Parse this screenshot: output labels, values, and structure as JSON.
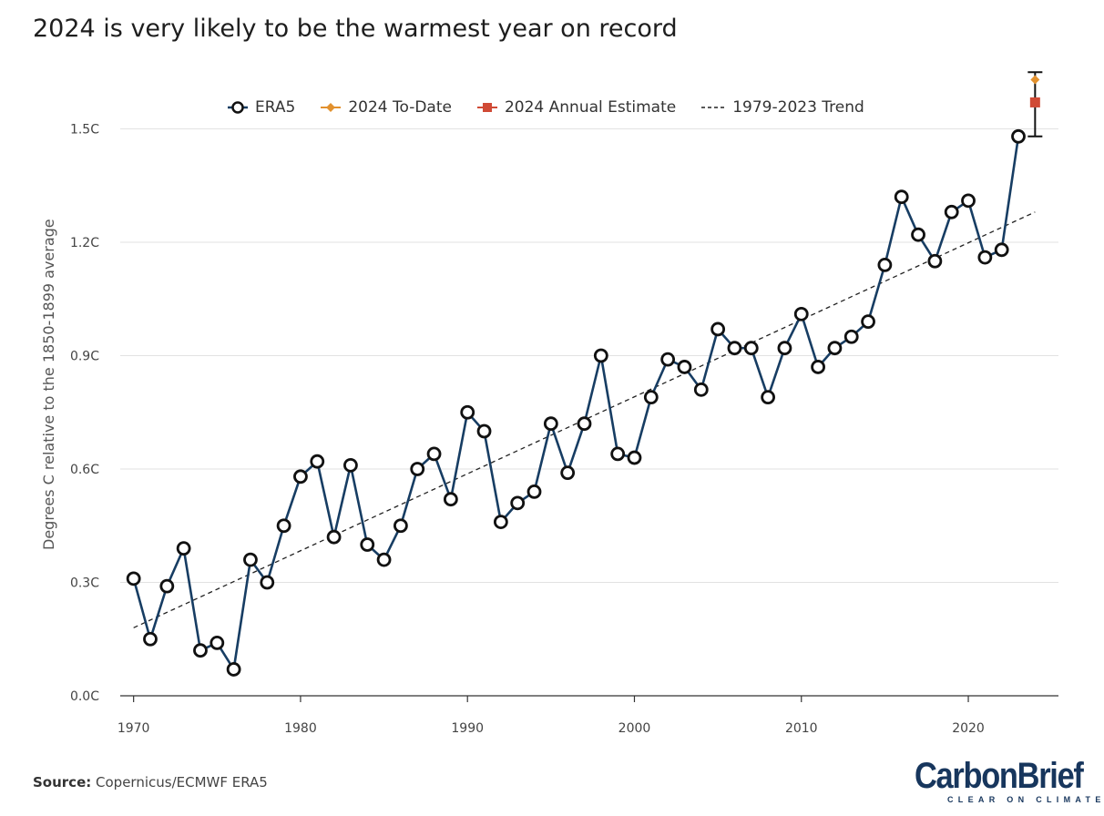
{
  "title": "2024 is very likely to be the warmest year on record",
  "legend": {
    "era5": "ERA5",
    "todate": "2024 To-Date",
    "estimate": "2024 Annual Estimate",
    "trend": "1979-2023 Trend"
  },
  "source": {
    "label": "Source:",
    "text": "Copernicus/ECMWF ERA5"
  },
  "logo": {
    "main": "CarbonBrief",
    "tagline": "CLEAR ON CLIMATE"
  },
  "colors": {
    "era5_line": "#173d63",
    "todate": "#e2912e",
    "estimate": "#d04a35",
    "trend": "#222222",
    "grid": "#e2e2e2"
  },
  "chart_data": {
    "type": "line",
    "ylabel": "Degrees C relative to the 1850-1899 average",
    "xlim": [
      1969.2,
      2025.4
    ],
    "ylim": [
      0.0,
      1.6
    ],
    "yticks": [
      {
        "v": 0.0,
        "label": "0.0C"
      },
      {
        "v": 0.3,
        "label": "0.3C"
      },
      {
        "v": 0.6,
        "label": "0.6C"
      },
      {
        "v": 0.9,
        "label": "0.9C"
      },
      {
        "v": 1.2,
        "label": "1.2C"
      },
      {
        "v": 1.5,
        "label": "1.5C"
      }
    ],
    "xticks": [
      {
        "v": 1970,
        "label": "1970"
      },
      {
        "v": 1980,
        "label": "1980"
      },
      {
        "v": 1990,
        "label": "1990"
      },
      {
        "v": 2000,
        "label": "2000"
      },
      {
        "v": 2010,
        "label": "2010"
      },
      {
        "v": 2020,
        "label": "2020"
      }
    ],
    "grid": true,
    "legend_position": "top",
    "series": [
      {
        "name": "ERA5",
        "x": [
          1970,
          1971,
          1972,
          1973,
          1974,
          1975,
          1976,
          1977,
          1978,
          1979,
          1980,
          1981,
          1982,
          1983,
          1984,
          1985,
          1986,
          1987,
          1988,
          1989,
          1990,
          1991,
          1992,
          1993,
          1994,
          1995,
          1996,
          1997,
          1998,
          1999,
          2000,
          2001,
          2002,
          2003,
          2004,
          2005,
          2006,
          2007,
          2008,
          2009,
          2010,
          2011,
          2012,
          2013,
          2014,
          2015,
          2016,
          2017,
          2018,
          2019,
          2020,
          2021,
          2022,
          2023
        ],
        "y": [
          0.31,
          0.15,
          0.29,
          0.39,
          0.12,
          0.14,
          0.07,
          0.36,
          0.3,
          0.45,
          0.58,
          0.62,
          0.42,
          0.61,
          0.4,
          0.36,
          0.45,
          0.6,
          0.64,
          0.52,
          0.75,
          0.7,
          0.46,
          0.51,
          0.54,
          0.72,
          0.59,
          0.72,
          0.9,
          0.64,
          0.63,
          0.79,
          0.89,
          0.87,
          0.81,
          0.97,
          0.92,
          0.92,
          0.79,
          0.92,
          1.01,
          0.87,
          0.92,
          0.95,
          0.99,
          1.14,
          1.32,
          1.22,
          1.15,
          1.28,
          1.31,
          1.16,
          1.18,
          1.48
        ]
      },
      {
        "name": "2024 To-Date",
        "x": [
          2024
        ],
        "y": [
          1.63
        ]
      },
      {
        "name": "2024 Annual Estimate",
        "x": [
          2024
        ],
        "y": [
          1.57
        ],
        "error_low": 1.48,
        "error_high": 1.65
      },
      {
        "name": "1979-2023 Trend",
        "x": [
          1970,
          2024
        ],
        "y": [
          0.18,
          1.28
        ]
      }
    ]
  }
}
